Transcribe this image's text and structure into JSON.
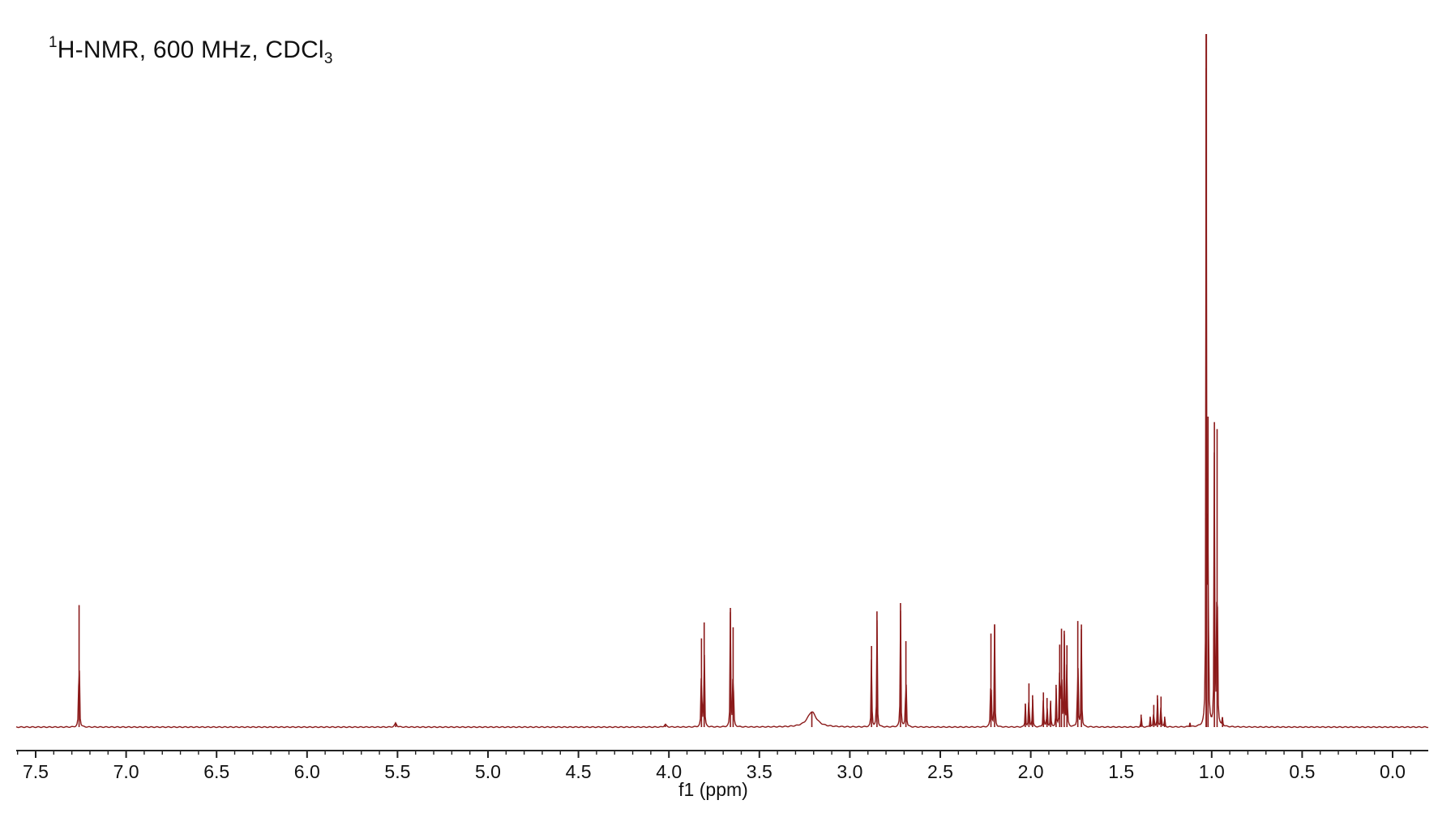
{
  "title": {
    "superscript": "1",
    "main": "H-NMR, 600 MHz, CDCl",
    "subscript": "3"
  },
  "chart_data": {
    "type": "line",
    "title": "1H-NMR, 600 MHz, CDCl3",
    "xlabel": "f1 (ppm)",
    "ylabel": "",
    "xlim": [
      7.6,
      -0.1
    ],
    "x_reversed": true,
    "grid": false,
    "line_color": "#8b1a1a",
    "xticks": [
      "7.5",
      "7.0",
      "6.5",
      "6.0",
      "5.5",
      "5.0",
      "4.5",
      "4.0",
      "3.5",
      "3.0",
      "2.5",
      "2.0",
      "1.5",
      "1.0",
      "0.5",
      "0.0"
    ],
    "xtick_values": [
      7.5,
      7.0,
      6.5,
      6.0,
      5.5,
      5.0,
      4.5,
      4.0,
      3.5,
      3.0,
      2.5,
      2.0,
      1.5,
      1.0,
      0.5,
      0.0
    ],
    "peaks": [
      {
        "ppm": 7.26,
        "height": 0.176
      },
      {
        "ppm": 5.51,
        "height": 0.006
      },
      {
        "ppm": 4.02,
        "height": 0.004
      },
      {
        "ppm": 3.82,
        "height": 0.128
      },
      {
        "ppm": 3.805,
        "height": 0.151
      },
      {
        "ppm": 3.66,
        "height": 0.172
      },
      {
        "ppm": 3.645,
        "height": 0.144
      },
      {
        "ppm": 3.21,
        "height": 0.022
      },
      {
        "ppm": 2.88,
        "height": 0.117
      },
      {
        "ppm": 2.85,
        "height": 0.167
      },
      {
        "ppm": 2.72,
        "height": 0.179
      },
      {
        "ppm": 2.69,
        "height": 0.124
      },
      {
        "ppm": 2.22,
        "height": 0.135
      },
      {
        "ppm": 2.2,
        "height": 0.148
      },
      {
        "ppm": 2.03,
        "height": 0.034
      },
      {
        "ppm": 2.01,
        "height": 0.063
      },
      {
        "ppm": 1.99,
        "height": 0.046
      },
      {
        "ppm": 1.93,
        "height": 0.05
      },
      {
        "ppm": 1.91,
        "height": 0.042
      },
      {
        "ppm": 1.89,
        "height": 0.038
      },
      {
        "ppm": 1.86,
        "height": 0.061
      },
      {
        "ppm": 1.84,
        "height": 0.119
      },
      {
        "ppm": 1.83,
        "height": 0.142
      },
      {
        "ppm": 1.815,
        "height": 0.139
      },
      {
        "ppm": 1.8,
        "height": 0.118
      },
      {
        "ppm": 1.74,
        "height": 0.153
      },
      {
        "ppm": 1.72,
        "height": 0.148
      },
      {
        "ppm": 1.39,
        "height": 0.018
      },
      {
        "ppm": 1.34,
        "height": 0.015
      },
      {
        "ppm": 1.32,
        "height": 0.032
      },
      {
        "ppm": 1.3,
        "height": 0.046
      },
      {
        "ppm": 1.28,
        "height": 0.044
      },
      {
        "ppm": 1.26,
        "height": 0.015
      },
      {
        "ppm": 1.12,
        "height": 0.006
      },
      {
        "ppm": 1.03,
        "height": 1.0
      },
      {
        "ppm": 1.02,
        "height": 0.448
      },
      {
        "ppm": 0.985,
        "height": 0.44
      },
      {
        "ppm": 0.97,
        "height": 0.43
      },
      {
        "ppm": 0.94,
        "height": 0.014
      }
    ]
  }
}
